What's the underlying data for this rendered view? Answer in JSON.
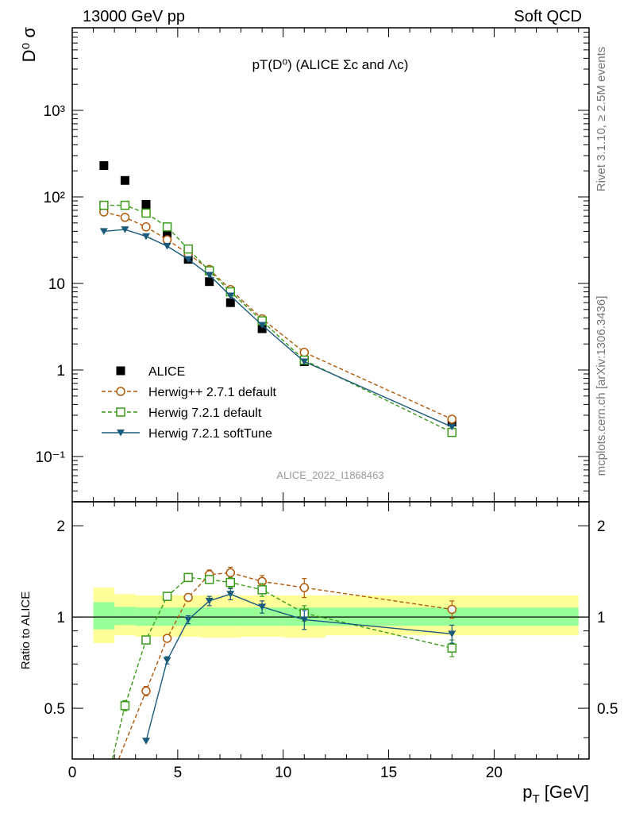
{
  "header": {
    "energy_label": "13000 GeV pp",
    "process_label": "Soft QCD"
  },
  "side_labels": {
    "rivet": "Rivet 3.1.10, ≥ 2.5M events",
    "source": "mcplots.cern.ch [arXiv:1306.3436]"
  },
  "chart_data": [
    {
      "type": "scatter",
      "title": "pT(D⁰) (ALICE Σc and Λc)",
      "ylabel": "D⁰ σ",
      "xlabel": "",
      "watermark": "ALICE_2022_I1868463",
      "yscale": "log",
      "xlim": [
        0,
        24.5
      ],
      "ylim": [
        0.03,
        9000
      ],
      "x_ticks": [
        "0",
        "5",
        "10",
        "15",
        "20"
      ],
      "y_ticks": [
        "10⁻¹",
        "1",
        "10",
        "10²",
        "10³"
      ],
      "legend_position": "lower-left",
      "series": [
        {
          "name": "ALICE",
          "style": "data",
          "color": "#000000",
          "marker": "filled-square",
          "x": [
            1.5,
            2.5,
            3.5,
            4.5,
            5.5,
            6.5,
            7.5,
            9,
            11,
            18
          ],
          "y": [
            230,
            155,
            82,
            38,
            19,
            10.5,
            6,
            3.0,
            1.25,
            0.25
          ]
        },
        {
          "name": "Herwig++ 2.7.1 default",
          "style": "dashed",
          "color": "#b05a0a",
          "marker": "open-circle",
          "x": [
            1.5,
            2.5,
            3.5,
            4.5,
            5.5,
            6.5,
            7.5,
            9,
            11,
            18
          ],
          "y": [
            67,
            58,
            45,
            32,
            22,
            14.5,
            8.5,
            3.9,
            1.6,
            0.27
          ]
        },
        {
          "name": "Herwig 7.2.1 default",
          "style": "dashed",
          "color": "#3a9a1a",
          "marker": "open-square",
          "x": [
            1.5,
            2.5,
            3.5,
            4.5,
            5.5,
            6.5,
            7.5,
            9,
            11,
            18
          ],
          "y": [
            80,
            80,
            65,
            45,
            25,
            14,
            8,
            3.7,
            1.3,
            0.19
          ]
        },
        {
          "name": "Herwig 7.2.1 softTune",
          "style": "solid",
          "color": "#1a5a7a",
          "marker": "filled-triangle-down",
          "x": [
            1.5,
            2.5,
            3.5,
            4.5,
            5.5,
            6.5,
            7.5,
            9,
            11,
            18
          ],
          "y": [
            40,
            42,
            35,
            27,
            19,
            12.5,
            7.2,
            3.3,
            1.25,
            0.22
          ]
        }
      ]
    },
    {
      "type": "line",
      "ylabel": "Ratio to ALICE",
      "xlabel": "p_T [GeV]",
      "xlabel_main": "p",
      "xlabel_sub": "T",
      "xlabel_unit": " [GeV]",
      "xlim": [
        0,
        24.5
      ],
      "ylim": [
        0.34,
        2.4
      ],
      "yscale": "log",
      "x_ticks": [
        "0",
        "5",
        "10",
        "15",
        "20"
      ],
      "y_ticks": [
        "0.5",
        "1",
        "2"
      ],
      "bands": {
        "x_edges": [
          1,
          2,
          3,
          4,
          5,
          6,
          7,
          8,
          10,
          12,
          24
        ],
        "yellow_lo": [
          0.82,
          0.87,
          0.86,
          0.86,
          0.86,
          0.855,
          0.855,
          0.86,
          0.855,
          0.87
        ],
        "yellow_hi": [
          1.25,
          1.19,
          1.18,
          1.18,
          1.18,
          1.18,
          1.18,
          1.18,
          1.18,
          1.18
        ],
        "green_lo": [
          0.91,
          0.94,
          0.935,
          0.935,
          0.935,
          0.935,
          0.935,
          0.935,
          0.935,
          0.935
        ],
        "green_hi": [
          1.12,
          1.08,
          1.075,
          1.075,
          1.075,
          1.075,
          1.075,
          1.075,
          1.075,
          1.075
        ]
      },
      "series": [
        {
          "name": "Herwig++ 2.7.1 default",
          "style": "dashed",
          "color": "#b05a0a",
          "marker": "open-circle",
          "x": [
            2.2,
            3.5,
            4.5,
            5.5,
            6.5,
            7.5,
            9,
            11,
            18
          ],
          "y": [
            0.34,
            0.57,
            0.85,
            1.16,
            1.38,
            1.4,
            1.31,
            1.25,
            1.06
          ],
          "yerr": [
            0,
            0.02,
            0.02,
            0.03,
            0.05,
            0.06,
            0.06,
            0.09,
            0.07
          ]
        },
        {
          "name": "Herwig 7.2.1 default",
          "style": "dashed",
          "color": "#3a9a1a",
          "marker": "open-square",
          "x": [
            1.9,
            2.5,
            3.5,
            4.5,
            5.5,
            6.5,
            7.5,
            9,
            11,
            18
          ],
          "y": [
            0.34,
            0.51,
            0.84,
            1.17,
            1.35,
            1.33,
            1.3,
            1.23,
            1.03,
            0.79
          ],
          "yerr": [
            0,
            0.02,
            0.02,
            0.02,
            0.04,
            0.04,
            0.05,
            0.06,
            0.06,
            0.05
          ]
        },
        {
          "name": "Herwig 7.2.1 softTune",
          "style": "solid",
          "color": "#1a5a7a",
          "marker": "filled-triangle-down",
          "x": [
            3.5,
            4.5,
            5.5,
            6.5,
            7.5,
            9,
            11,
            18
          ],
          "y": [
            0.39,
            0.72,
            0.98,
            1.13,
            1.19,
            1.08,
            0.98,
            0.88
          ],
          "yerr": [
            0,
            0.02,
            0.03,
            0.04,
            0.05,
            0.05,
            0.07,
            0.06
          ]
        }
      ]
    }
  ]
}
